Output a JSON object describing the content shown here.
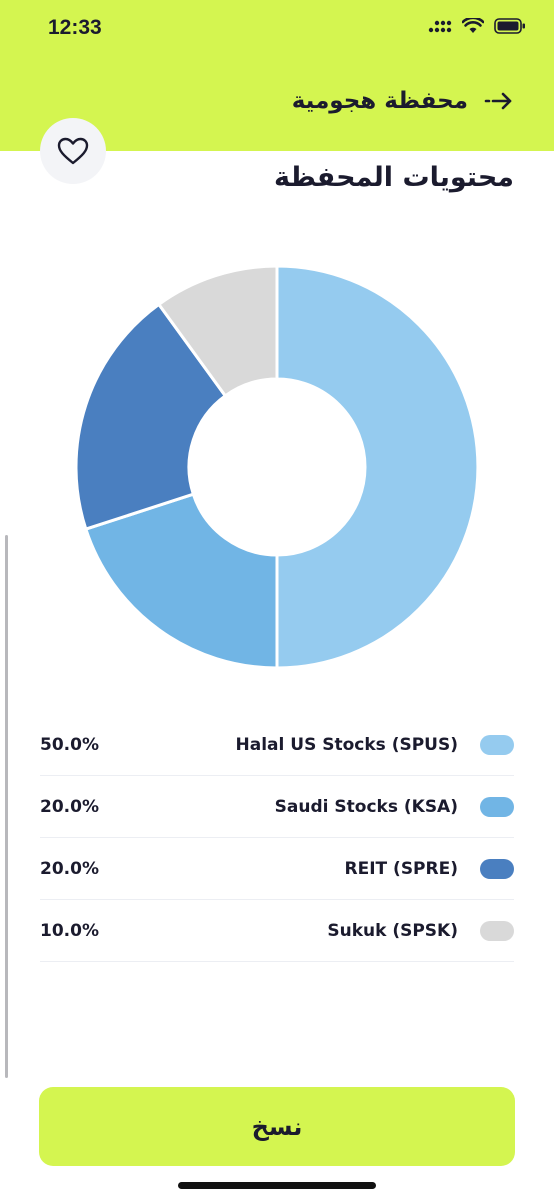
{
  "status_bar": {
    "time": "12:33"
  },
  "header": {
    "title": "محفظة هجومية"
  },
  "section": {
    "title": "محتويات المحفظة"
  },
  "chart_data": {
    "type": "pie",
    "donut": true,
    "categories": [
      "Halal US Stocks (SPUS)",
      "Saudi Stocks (KSA)",
      "REIT (SPRE)",
      "Sukuk (SPSK)"
    ],
    "values": [
      50.0,
      20.0,
      20.0,
      10.0
    ],
    "colors": [
      "#95cbef",
      "#71b5e5",
      "#4a7fc0",
      "#d9d9d9"
    ]
  },
  "legend": [
    {
      "name": "Halal US Stocks (SPUS)",
      "percent": "50.0%",
      "color": "#95cbef"
    },
    {
      "name": "Saudi Stocks (KSA)",
      "percent": "20.0%",
      "color": "#71b5e5"
    },
    {
      "name": "REIT (SPRE)",
      "percent": "20.0%",
      "color": "#4a7fc0"
    },
    {
      "name": "Sukuk (SPSK)",
      "percent": "10.0%",
      "color": "#d9d9d9"
    }
  ],
  "footer": {
    "copy_label": "نسخ"
  },
  "icons": {
    "back": "arrow-right-icon",
    "favorite": "heart-icon",
    "signal": "signal-icon",
    "wifi": "wifi-icon",
    "battery": "battery-icon"
  }
}
